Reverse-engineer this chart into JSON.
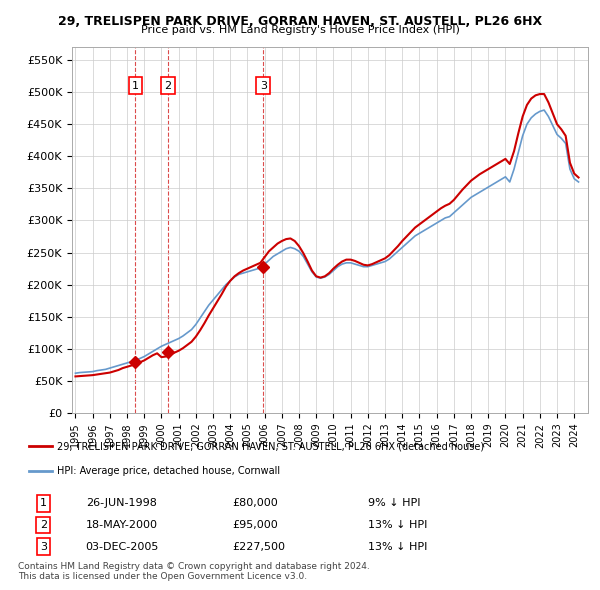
{
  "title": "29, TRELISPEN PARK DRIVE, GORRAN HAVEN, ST. AUSTELL, PL26 6HX",
  "subtitle": "Price paid vs. HM Land Registry's House Price Index (HPI)",
  "ylim": [
    0,
    570000
  ],
  "yticks": [
    0,
    50000,
    100000,
    150000,
    200000,
    250000,
    300000,
    350000,
    400000,
    450000,
    500000,
    550000
  ],
  "ytick_labels": [
    "£0",
    "£50K",
    "£100K",
    "£150K",
    "£200K",
    "£250K",
    "£300K",
    "£350K",
    "£400K",
    "£450K",
    "£500K",
    "£550K"
  ],
  "hpi_color": "#6699cc",
  "price_color": "#cc0000",
  "transaction_color": "#cc0000",
  "dashed_color": "#cc0000",
  "grid_color": "#cccccc",
  "bg_color": "#ffffff",
  "legend_box_color": "#dddddd",
  "transactions": [
    {
      "date": 1998.49,
      "price": 80000,
      "label": "1"
    },
    {
      "date": 2000.38,
      "price": 95000,
      "label": "2"
    },
    {
      "date": 2005.92,
      "price": 227500,
      "label": "3"
    }
  ],
  "legend_line1": "29, TRELISPEN PARK DRIVE, GORRAN HAVEN, ST. AUSTELL, PL26 6HX (detached house)",
  "legend_line2": "HPI: Average price, detached house, Cornwall",
  "table_rows": [
    {
      "num": "1",
      "date": "26-JUN-1998",
      "price": "£80,000",
      "hpi": "9% ↓ HPI"
    },
    {
      "num": "2",
      "date": "18-MAY-2000",
      "price": "£95,000",
      "hpi": "13% ↓ HPI"
    },
    {
      "num": "3",
      "date": "03-DEC-2005",
      "price": "£227,500",
      "hpi": "13% ↓ HPI"
    }
  ],
  "footer": "Contains HM Land Registry data © Crown copyright and database right 2024.\nThis data is licensed under the Open Government Licence v3.0.",
  "hpi_x": [
    1995.0,
    1995.25,
    1995.5,
    1995.75,
    1996.0,
    1996.25,
    1996.5,
    1996.75,
    1997.0,
    1997.25,
    1997.5,
    1997.75,
    1998.0,
    1998.25,
    1998.5,
    1998.75,
    1999.0,
    1999.25,
    1999.5,
    1999.75,
    2000.0,
    2000.25,
    2000.5,
    2000.75,
    2001.0,
    2001.25,
    2001.5,
    2001.75,
    2002.0,
    2002.25,
    2002.5,
    2002.75,
    2003.0,
    2003.25,
    2003.5,
    2003.75,
    2004.0,
    2004.25,
    2004.5,
    2004.75,
    2005.0,
    2005.25,
    2005.5,
    2005.75,
    2006.0,
    2006.25,
    2006.5,
    2006.75,
    2007.0,
    2007.25,
    2007.5,
    2007.75,
    2008.0,
    2008.25,
    2008.5,
    2008.75,
    2009.0,
    2009.25,
    2009.5,
    2009.75,
    2010.0,
    2010.25,
    2010.5,
    2010.75,
    2011.0,
    2011.25,
    2011.5,
    2011.75,
    2012.0,
    2012.25,
    2012.5,
    2012.75,
    2013.0,
    2013.25,
    2013.5,
    2013.75,
    2014.0,
    2014.25,
    2014.5,
    2014.75,
    2015.0,
    2015.25,
    2015.5,
    2015.75,
    2016.0,
    2016.25,
    2016.5,
    2016.75,
    2017.0,
    2017.25,
    2017.5,
    2017.75,
    2018.0,
    2018.25,
    2018.5,
    2018.75,
    2019.0,
    2019.25,
    2019.5,
    2019.75,
    2020.0,
    2020.25,
    2020.5,
    2020.75,
    2021.0,
    2021.25,
    2021.5,
    2021.75,
    2022.0,
    2022.25,
    2022.5,
    2022.75,
    2023.0,
    2023.25,
    2023.5,
    2023.75,
    2024.0,
    2024.25
  ],
  "hpi_y": [
    62000,
    63000,
    63500,
    64000,
    64500,
    66000,
    67000,
    68000,
    70000,
    72000,
    74000,
    76000,
    78000,
    80000,
    82000,
    85000,
    88000,
    92000,
    96000,
    100000,
    104000,
    107000,
    110000,
    113000,
    116000,
    120000,
    125000,
    130000,
    138000,
    148000,
    158000,
    168000,
    176000,
    184000,
    192000,
    200000,
    206000,
    212000,
    216000,
    218000,
    220000,
    222000,
    224000,
    226000,
    232000,
    238000,
    244000,
    248000,
    252000,
    256000,
    258000,
    256000,
    252000,
    244000,
    232000,
    220000,
    212000,
    210000,
    212000,
    216000,
    222000,
    228000,
    232000,
    234000,
    234000,
    232000,
    230000,
    228000,
    228000,
    230000,
    232000,
    234000,
    236000,
    240000,
    246000,
    252000,
    258000,
    264000,
    270000,
    276000,
    280000,
    284000,
    288000,
    292000,
    296000,
    300000,
    304000,
    306000,
    312000,
    318000,
    324000,
    330000,
    336000,
    340000,
    344000,
    348000,
    352000,
    356000,
    360000,
    364000,
    368000,
    360000,
    380000,
    406000,
    432000,
    450000,
    460000,
    466000,
    470000,
    472000,
    462000,
    448000,
    434000,
    428000,
    420000,
    380000,
    365000,
    360000
  ],
  "price_x": [
    1995.0,
    1995.25,
    1995.5,
    1995.75,
    1996.0,
    1996.25,
    1996.5,
    1996.75,
    1997.0,
    1997.25,
    1997.5,
    1997.75,
    1998.0,
    1998.25,
    1998.5,
    1998.75,
    1999.0,
    1999.25,
    1999.5,
    1999.75,
    2000.0,
    2000.25,
    2000.5,
    2000.75,
    2001.0,
    2001.25,
    2001.5,
    2001.75,
    2002.0,
    2002.25,
    2002.5,
    2002.75,
    2003.0,
    2003.25,
    2003.5,
    2003.75,
    2004.0,
    2004.25,
    2004.5,
    2004.75,
    2005.0,
    2005.25,
    2005.5,
    2005.75,
    2006.0,
    2006.25,
    2006.5,
    2006.75,
    2007.0,
    2007.25,
    2007.5,
    2007.75,
    2008.0,
    2008.25,
    2008.5,
    2008.75,
    2009.0,
    2009.25,
    2009.5,
    2009.75,
    2010.0,
    2010.25,
    2010.5,
    2010.75,
    2011.0,
    2011.25,
    2011.5,
    2011.75,
    2012.0,
    2012.25,
    2012.5,
    2012.75,
    2013.0,
    2013.25,
    2013.5,
    2013.75,
    2014.0,
    2014.25,
    2014.5,
    2014.75,
    2015.0,
    2015.25,
    2015.5,
    2015.75,
    2016.0,
    2016.25,
    2016.5,
    2016.75,
    2017.0,
    2017.25,
    2017.5,
    2017.75,
    2018.0,
    2018.25,
    2018.5,
    2018.75,
    2019.0,
    2019.25,
    2019.5,
    2019.75,
    2020.0,
    2020.25,
    2020.5,
    2020.75,
    2021.0,
    2021.25,
    2021.5,
    2021.75,
    2022.0,
    2022.25,
    2022.5,
    2022.75,
    2023.0,
    2023.25,
    2023.5,
    2023.75,
    2024.0,
    2024.25
  ],
  "price_y": [
    57000,
    57500,
    58000,
    58500,
    59000,
    60000,
    61000,
    62000,
    63000,
    65000,
    67000,
    70000,
    72000,
    74000,
    76000,
    79000,
    82000,
    86000,
    90000,
    93000,
    87000,
    88000,
    91000,
    94000,
    97000,
    101000,
    106000,
    111000,
    119000,
    129000,
    140000,
    152000,
    163000,
    174000,
    185000,
    197000,
    206000,
    213000,
    218000,
    222000,
    225000,
    228000,
    231000,
    234000,
    243000,
    252000,
    258000,
    264000,
    268000,
    271000,
    272000,
    268000,
    260000,
    249000,
    236000,
    222000,
    213000,
    211000,
    213000,
    218000,
    225000,
    231000,
    236000,
    239000,
    239000,
    237000,
    234000,
    231000,
    230000,
    232000,
    235000,
    238000,
    241000,
    246000,
    253000,
    260000,
    268000,
    275000,
    282000,
    289000,
    294000,
    299000,
    304000,
    309000,
    314000,
    319000,
    323000,
    326000,
    332000,
    340000,
    348000,
    355000,
    362000,
    367000,
    372000,
    376000,
    380000,
    384000,
    388000,
    392000,
    396000,
    388000,
    408000,
    436000,
    462000,
    480000,
    490000,
    495000,
    497000,
    497000,
    484000,
    467000,
    450000,
    442000,
    432000,
    390000,
    373000,
    367000
  ]
}
